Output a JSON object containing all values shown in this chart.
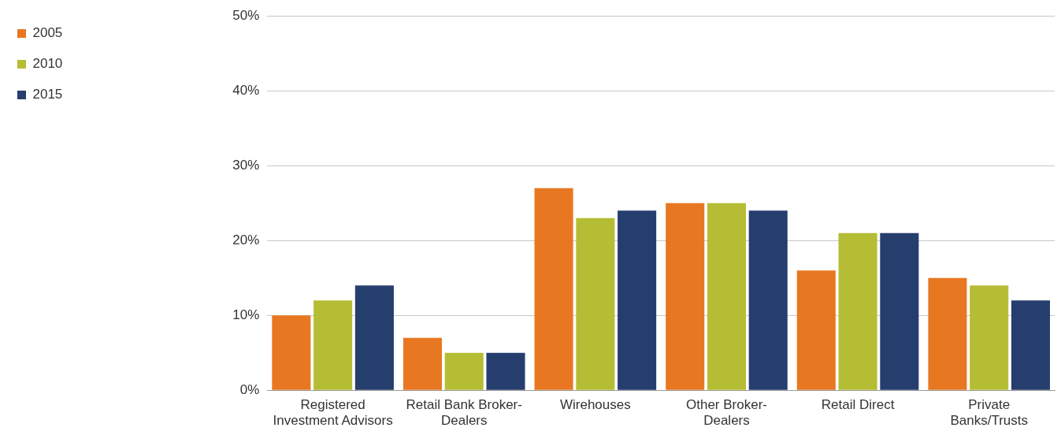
{
  "chart_data": {
    "type": "bar",
    "categories": [
      "Registered Investment Advisors",
      "Retail Bank Broker-Dealers",
      "Wirehouses",
      "Other Broker-Dealers",
      "Retail Direct",
      "Private Banks/Trusts"
    ],
    "series": [
      {
        "name": "2005",
        "color": "#e87722",
        "values": [
          10,
          7,
          27,
          25,
          16,
          15
        ]
      },
      {
        "name": "2010",
        "color": "#b5bd35",
        "values": [
          12,
          5,
          23,
          25,
          21,
          14
        ]
      },
      {
        "name": "2015",
        "color": "#263e6e",
        "values": [
          14,
          5,
          24,
          24,
          21,
          12
        ]
      }
    ],
    "ylim": [
      0,
      50
    ],
    "yticks": [
      {
        "value": 0,
        "label": "0%"
      },
      {
        "value": 10,
        "label": "10%"
      },
      {
        "value": 20,
        "label": "20%"
      },
      {
        "value": 30,
        "label": "30%"
      },
      {
        "value": 40,
        "label": "40%"
      },
      {
        "value": 50,
        "label": "50%"
      }
    ],
    "grid": "y",
    "legend": "left"
  }
}
